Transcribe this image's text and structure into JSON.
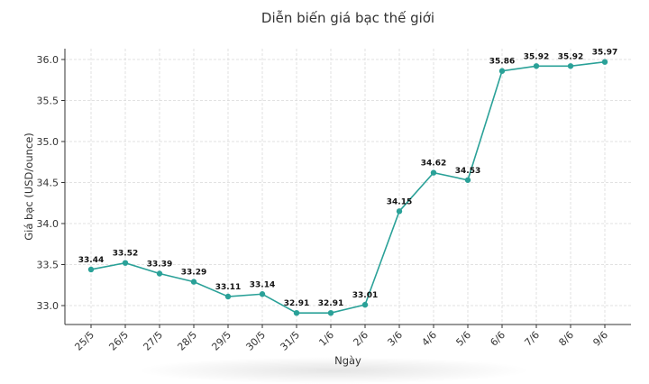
{
  "chart_data": {
    "type": "line",
    "title": "Diễn biến giá bạc thế giới",
    "xlabel": "Ngày",
    "ylabel": "Giá bạc (USD/ounce)",
    "categories": [
      "25/5",
      "26/5",
      "27/5",
      "28/5",
      "29/5",
      "30/5",
      "31/5",
      "1/6",
      "2/6",
      "3/6",
      "4/6",
      "5/6",
      "6/6",
      "7/6",
      "8/6",
      "9/6"
    ],
    "series": [
      {
        "name": "Giá bạc",
        "values": [
          33.44,
          33.52,
          33.39,
          33.29,
          33.11,
          33.14,
          32.91,
          32.91,
          33.01,
          34.15,
          34.62,
          34.53,
          35.86,
          35.92,
          35.92,
          35.97
        ],
        "color": "#2aa198"
      }
    ],
    "data_labels": [
      "33.44",
      "33.52",
      "33.39",
      "33.29",
      "33.11",
      "33.14",
      "32.91",
      "32.91",
      "33.01",
      "34.15",
      "34.62",
      "34.53",
      "35.86",
      "35.92",
      "35.92",
      "35.97"
    ],
    "yticks": [
      33.0,
      33.5,
      34.0,
      34.5,
      35.0,
      35.5,
      36.0
    ],
    "ytick_labels": [
      "33.0",
      "33.5",
      "34.0",
      "34.5",
      "35.0",
      "35.5",
      "36.0"
    ],
    "ylim": [
      32.83,
      36.07
    ],
    "grid": true,
    "legend": null,
    "x_tick_rotation": 45
  },
  "colors": {
    "line": "#2aa198",
    "marker": "#2aa198",
    "grid": "#d9d9d9",
    "axis": "#333333",
    "text": "#333333"
  }
}
